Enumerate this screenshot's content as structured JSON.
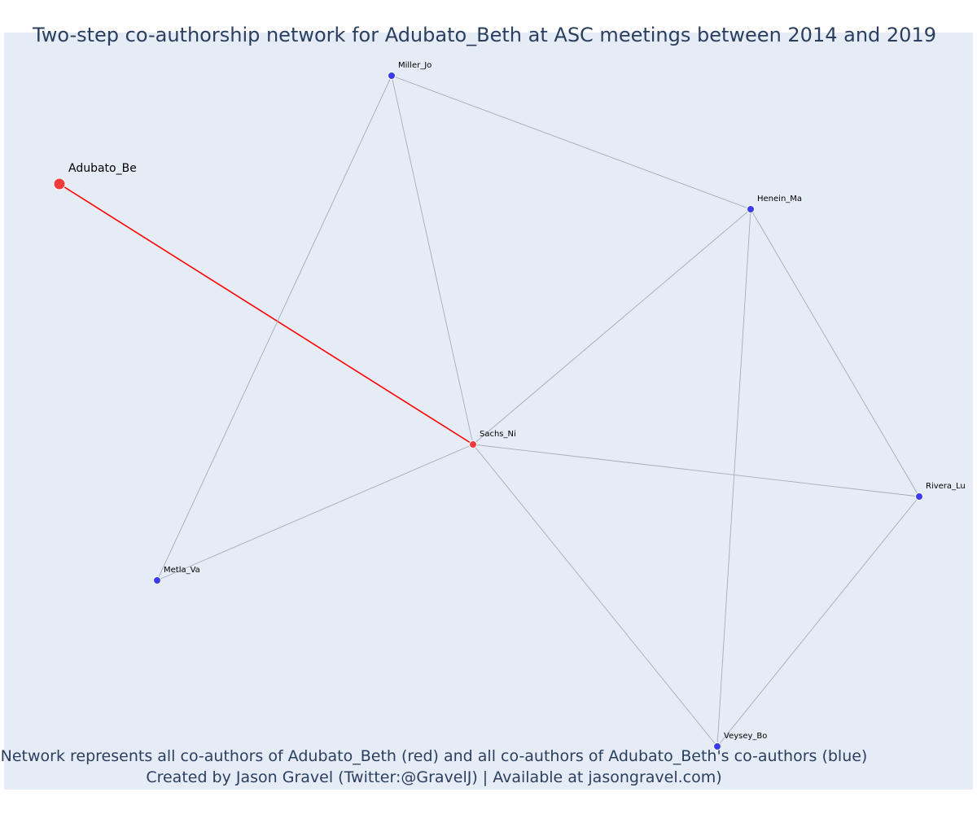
{
  "title": "Two-step co-authorship network for Adubato_Beth at ASC meetings between 2014 and 2019",
  "footnote": {
    "line1": "Network represents all co-authors of Adubato_Beth (red) and all co-authors of Adubato_Beth's co-authors (blue)",
    "line2": "Created by Jason Gravel (Twitter:@GravelJ) | Available at jasongravel.com)"
  },
  "colors": {
    "background": "#e5ecf6",
    "focal_node": "#ef3b3b",
    "coauthor_node": "#3b3bef",
    "focal_edge": "#ff0000",
    "edge": "#a8aab8",
    "text": "#2a3f5f"
  },
  "network": {
    "nodes": [
      {
        "id": "Adubato_Be",
        "label": "Adubato_Be",
        "group": "focal",
        "emphasis": "large"
      },
      {
        "id": "Sachs_Ni",
        "label": "Sachs_Ni",
        "group": "focal"
      },
      {
        "id": "Miller_Jo",
        "label": "Miller_Jo",
        "group": "coauthor"
      },
      {
        "id": "Henein_Ma",
        "label": "Henein_Ma",
        "group": "coauthor"
      },
      {
        "id": "Rivera_Lu",
        "label": "Rivera_Lu",
        "group": "coauthor"
      },
      {
        "id": "Metla_Va",
        "label": "Metla_Va",
        "group": "coauthor"
      },
      {
        "id": "Veysey_Bo",
        "label": "Veysey_Bo",
        "group": "coauthor"
      }
    ],
    "edges": [
      {
        "source": "Adubato_Be",
        "target": "Sachs_Ni",
        "group": "focal"
      },
      {
        "source": "Miller_Jo",
        "target": "Henein_Ma",
        "group": "coauthor"
      },
      {
        "source": "Miller_Jo",
        "target": "Sachs_Ni",
        "group": "coauthor"
      },
      {
        "source": "Miller_Jo",
        "target": "Metla_Va",
        "group": "coauthor"
      },
      {
        "source": "Henein_Ma",
        "target": "Sachs_Ni",
        "group": "coauthor"
      },
      {
        "source": "Henein_Ma",
        "target": "Veysey_Bo",
        "group": "coauthor"
      },
      {
        "source": "Henein_Ma",
        "target": "Rivera_Lu",
        "group": "coauthor"
      },
      {
        "source": "Sachs_Ni",
        "target": "Rivera_Lu",
        "group": "coauthor"
      },
      {
        "source": "Sachs_Ni",
        "target": "Metla_Va",
        "group": "coauthor"
      },
      {
        "source": "Sachs_Ni",
        "target": "Veysey_Bo",
        "group": "coauthor"
      },
      {
        "source": "Rivera_Lu",
        "target": "Veysey_Bo",
        "group": "coauthor"
      }
    ]
  }
}
